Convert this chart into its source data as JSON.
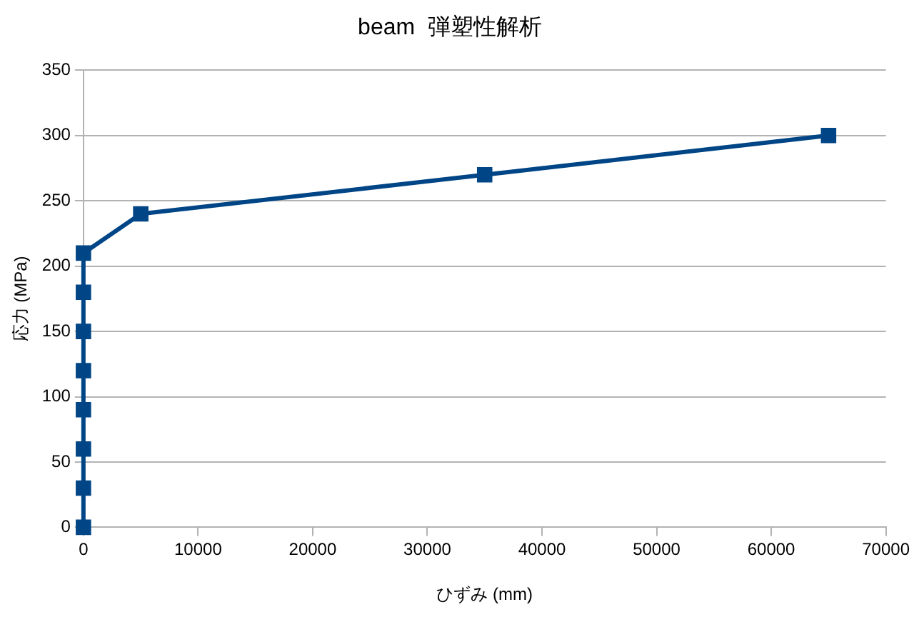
{
  "chart_data": {
    "type": "line",
    "title": "beam  弾塑性解析",
    "xlabel": "ひずみ (mm)",
    "ylabel": "応力 (MPa)",
    "x": [
      0,
      0,
      0,
      0,
      0,
      0,
      0,
      0,
      5000,
      35000,
      65000
    ],
    "series": [
      {
        "color": "#004586",
        "values": [
          0,
          30,
          60,
          90,
          120,
          150,
          180,
          210,
          240,
          270,
          300
        ]
      }
    ],
    "xlim": [
      0,
      70000
    ],
    "xticks": [
      0,
      10000,
      20000,
      30000,
      40000,
      50000,
      60000,
      70000
    ],
    "ylim": [
      0,
      350
    ],
    "yticks": [
      0,
      50,
      100,
      150,
      200,
      250,
      300,
      350
    ],
    "grid": "y",
    "legend": false,
    "marker": "square",
    "line_style": "solid"
  }
}
